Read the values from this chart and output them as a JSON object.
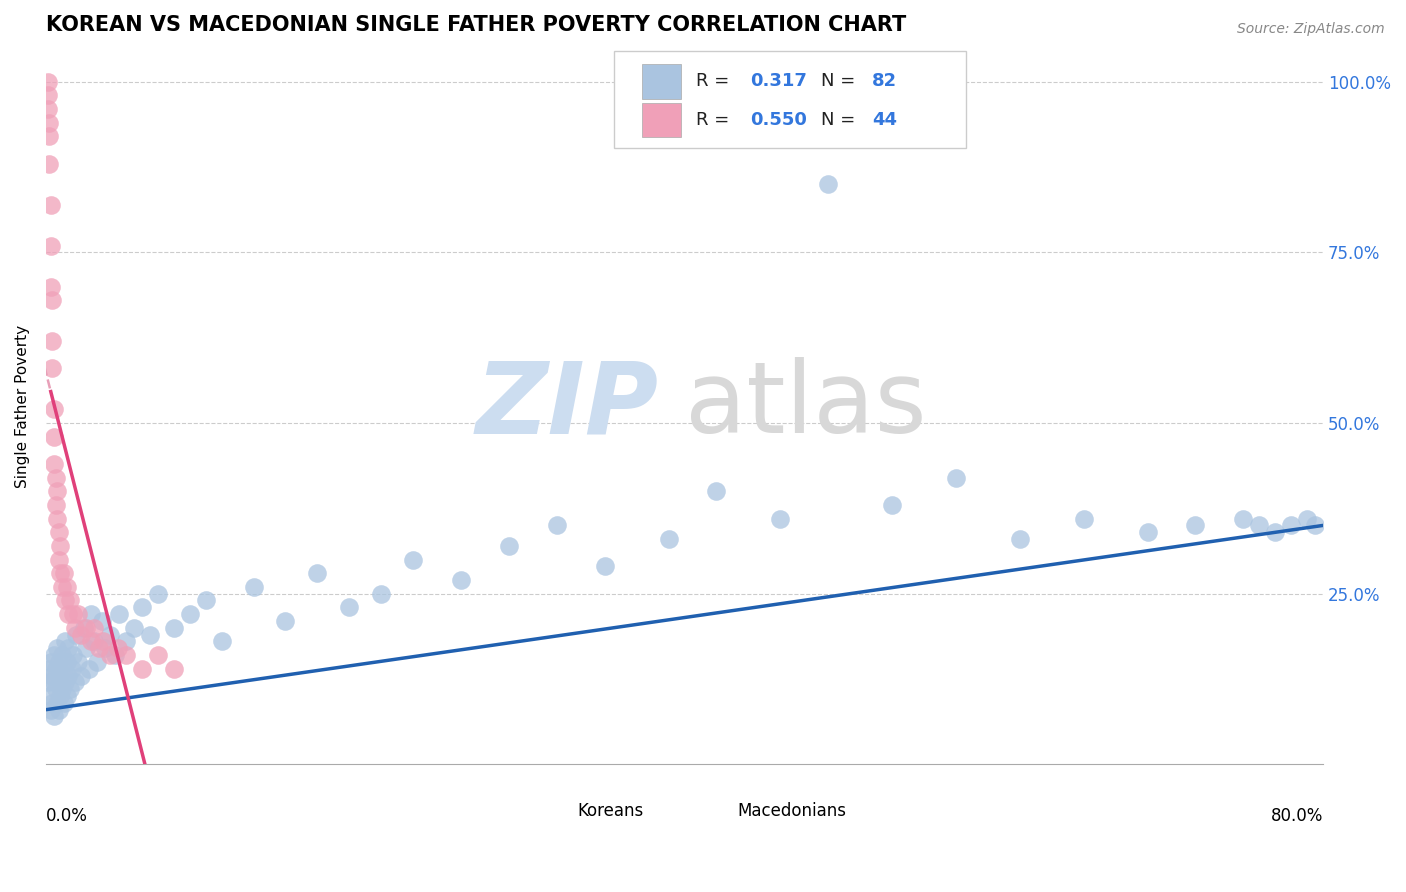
{
  "title": "KOREAN VS MACEDONIAN SINGLE FATHER POVERTY CORRELATION CHART",
  "source": "Source: ZipAtlas.com",
  "ylabel": "Single Father Poverty",
  "legend_korean_r": "0.317",
  "legend_korean_n": "82",
  "legend_macedonian_r": "0.550",
  "legend_macedonian_n": "44",
  "korean_color": "#aac4e0",
  "macedonian_color": "#f0a0b8",
  "korean_line_color": "#2060b0",
  "macedonian_line_color": "#e0407a",
  "macedonian_line_dash_color": "#e8a0b8",
  "background_color": "#ffffff",
  "korean_scatter_x": [
    0.001,
    0.002,
    0.002,
    0.003,
    0.003,
    0.004,
    0.004,
    0.005,
    0.005,
    0.005,
    0.006,
    0.006,
    0.007,
    0.007,
    0.008,
    0.008,
    0.008,
    0.009,
    0.009,
    0.01,
    0.01,
    0.011,
    0.011,
    0.012,
    0.012,
    0.013,
    0.013,
    0.014,
    0.014,
    0.015,
    0.016,
    0.017,
    0.018,
    0.019,
    0.02,
    0.022,
    0.024,
    0.025,
    0.027,
    0.028,
    0.03,
    0.032,
    0.035,
    0.037,
    0.04,
    0.043,
    0.046,
    0.05,
    0.055,
    0.06,
    0.065,
    0.07,
    0.08,
    0.09,
    0.1,
    0.11,
    0.13,
    0.15,
    0.17,
    0.19,
    0.21,
    0.23,
    0.26,
    0.29,
    0.32,
    0.35,
    0.39,
    0.42,
    0.46,
    0.49,
    0.53,
    0.57,
    0.61,
    0.65,
    0.69,
    0.72,
    0.75,
    0.76,
    0.77,
    0.78,
    0.79,
    0.795
  ],
  "korean_scatter_y": [
    0.12,
    0.1,
    0.14,
    0.08,
    0.15,
    0.09,
    0.13,
    0.07,
    0.12,
    0.16,
    0.11,
    0.14,
    0.09,
    0.17,
    0.08,
    0.13,
    0.15,
    0.1,
    0.12,
    0.11,
    0.16,
    0.09,
    0.14,
    0.12,
    0.18,
    0.1,
    0.15,
    0.13,
    0.17,
    0.11,
    0.14,
    0.16,
    0.12,
    0.19,
    0.15,
    0.13,
    0.2,
    0.17,
    0.14,
    0.22,
    0.18,
    0.15,
    0.21,
    0.17,
    0.19,
    0.16,
    0.22,
    0.18,
    0.2,
    0.23,
    0.19,
    0.25,
    0.2,
    0.22,
    0.24,
    0.18,
    0.26,
    0.21,
    0.28,
    0.23,
    0.25,
    0.3,
    0.27,
    0.32,
    0.35,
    0.29,
    0.33,
    0.4,
    0.36,
    0.85,
    0.38,
    0.42,
    0.33,
    0.36,
    0.34,
    0.35,
    0.36,
    0.35,
    0.34,
    0.35,
    0.36,
    0.35
  ],
  "macedonian_scatter_x": [
    0.001,
    0.001,
    0.001,
    0.002,
    0.002,
    0.002,
    0.003,
    0.003,
    0.003,
    0.004,
    0.004,
    0.004,
    0.005,
    0.005,
    0.005,
    0.006,
    0.006,
    0.007,
    0.007,
    0.008,
    0.008,
    0.009,
    0.009,
    0.01,
    0.011,
    0.012,
    0.013,
    0.014,
    0.015,
    0.017,
    0.018,
    0.02,
    0.022,
    0.025,
    0.028,
    0.03,
    0.033,
    0.036,
    0.04,
    0.045,
    0.05,
    0.06,
    0.07,
    0.08
  ],
  "macedonian_scatter_y": [
    0.98,
    1.0,
    0.96,
    0.92,
    0.88,
    0.94,
    0.82,
    0.76,
    0.7,
    0.68,
    0.62,
    0.58,
    0.52,
    0.48,
    0.44,
    0.42,
    0.38,
    0.4,
    0.36,
    0.34,
    0.3,
    0.32,
    0.28,
    0.26,
    0.28,
    0.24,
    0.26,
    0.22,
    0.24,
    0.22,
    0.2,
    0.22,
    0.19,
    0.2,
    0.18,
    0.2,
    0.17,
    0.18,
    0.16,
    0.17,
    0.16,
    0.14,
    0.16,
    0.14
  ]
}
